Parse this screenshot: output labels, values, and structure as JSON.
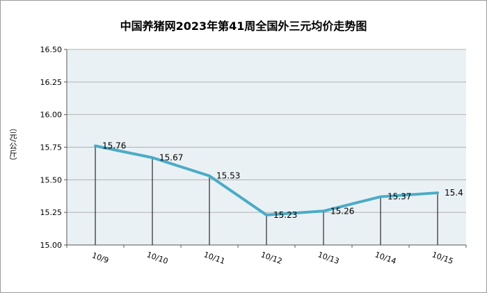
{
  "chart_data": {
    "type": "line",
    "title": "中国养猪网2023年第41周全国外三元均价走势图",
    "xlabel": "",
    "ylabel": "（元/公斤）",
    "categories": [
      "10/9",
      "10/10",
      "10/11",
      "10/12",
      "10/13",
      "10/14",
      "10/15"
    ],
    "values": [
      15.76,
      15.67,
      15.53,
      15.23,
      15.26,
      15.37,
      15.4
    ],
    "data_labels": [
      "15.76",
      "15.67",
      "15.53",
      "15.23",
      "15.26",
      "15.37",
      "15.4"
    ],
    "ylim": [
      15.0,
      16.5
    ],
    "yticks": [
      "15.00",
      "15.25",
      "15.50",
      "15.75",
      "16.00",
      "16.25",
      "16.50"
    ],
    "grid": true,
    "colors": {
      "line": "#4bacc6",
      "plot_bg": "#eaf1f5",
      "grid": "#b0b0b0",
      "drop_line": "#000000"
    }
  }
}
